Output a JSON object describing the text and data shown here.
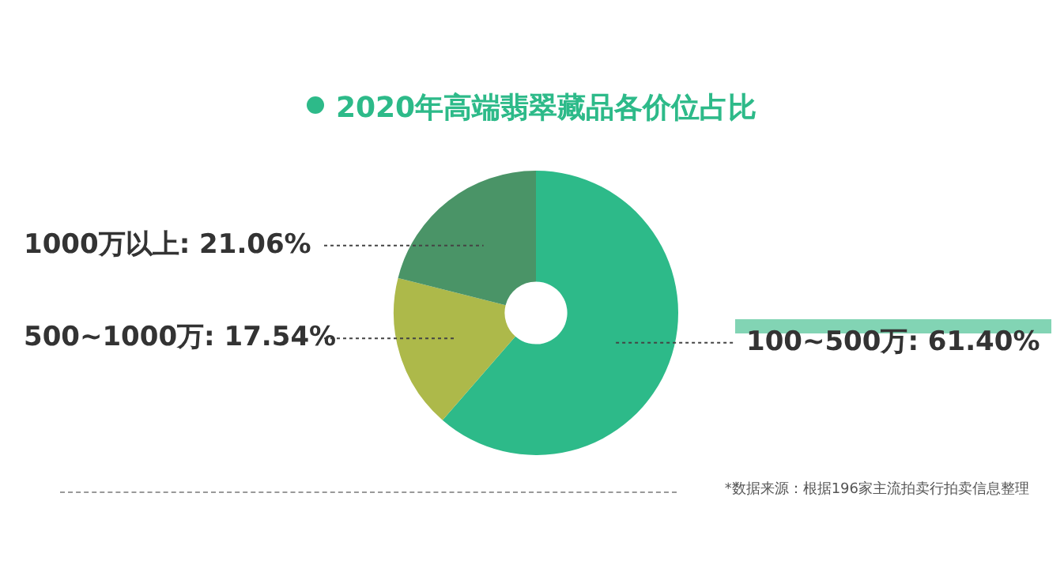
{
  "chart_data": {
    "type": "donut",
    "title": "2020年高端翡翠藏品各价位占比",
    "categories": [
      "100~500万",
      "500~1000万",
      "1000万以上"
    ],
    "values": [
      61.4,
      17.54,
      21.06
    ],
    "value_labels": [
      "61.40%",
      "17.54%",
      "21.06%"
    ],
    "colors": [
      "#2dba89",
      "#adb94a",
      "#4a9467"
    ],
    "annotations": [
      "*数据来源：根据196家主流拍卖行拍卖信息整理"
    ]
  }
}
